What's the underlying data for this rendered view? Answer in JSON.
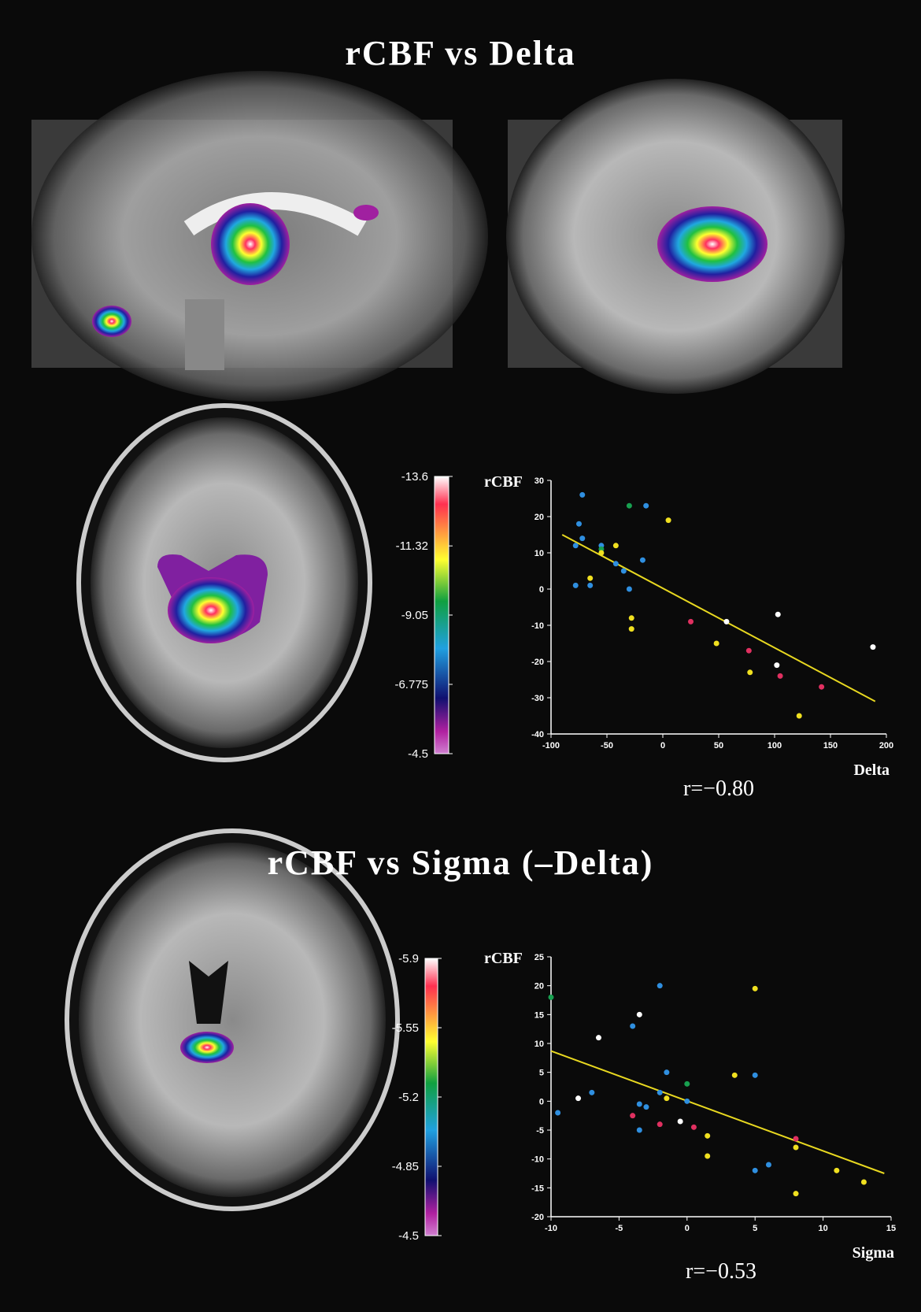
{
  "titles": [
    "rCBF vs Delta",
    "rCBF vs Sigma (–Delta)"
  ],
  "colorbars": [
    {
      "lim": [
        -13.6,
        -4.5
      ],
      "ticks": [
        -13.6,
        -11.32,
        -9.05,
        -6.775,
        -4.5
      ]
    },
    {
      "lim": [
        -5.9,
        -4.5
      ],
      "ticks": [
        -5.9,
        -5.55,
        -5.2,
        -4.85,
        -4.5
      ]
    }
  ],
  "chart_data": [
    {
      "type": "scatter",
      "ylabel": "rCBF",
      "xlabel": "Delta",
      "annotation": "r=−0.80",
      "xlim": [
        -100,
        200
      ],
      "ylim": [
        -40,
        30
      ],
      "xticks": [
        -100,
        -50,
        0,
        50,
        100,
        150,
        200
      ],
      "yticks": [
        -40,
        -30,
        -20,
        -10,
        0,
        10,
        20,
        30
      ],
      "series": [
        {
          "color": "#2f8fe0",
          "x": [
            -72,
            -75,
            -72,
            -78,
            -55,
            -42,
            -35,
            -18,
            -15,
            -78,
            -65,
            -30
          ],
          "y": [
            26,
            18,
            14,
            12,
            12,
            7,
            5,
            8,
            23,
            1,
            1,
            0
          ]
        },
        {
          "color": "#18a050",
          "x": [
            -30,
            -55
          ],
          "y": [
            23,
            11
          ]
        },
        {
          "color": "#f0e020",
          "x": [
            5,
            -65,
            -42,
            -55,
            -28,
            -28,
            48,
            78,
            122
          ],
          "y": [
            19,
            3,
            12,
            10,
            -8,
            -11,
            -15,
            -23,
            -35
          ]
        },
        {
          "color": "#e03060",
          "x": [
            25,
            77,
            105,
            142
          ],
          "y": [
            -9,
            -17,
            -24,
            -27
          ]
        },
        {
          "color": "#ffffff",
          "x": [
            57,
            103,
            102,
            188
          ],
          "y": [
            -9,
            -7,
            -21,
            -16
          ]
        }
      ],
      "fit": {
        "color": "#e8d820",
        "x": [
          -90,
          190
        ],
        "y": [
          15,
          -31
        ]
      }
    },
    {
      "type": "scatter",
      "ylabel": "rCBF",
      "xlabel": "Sigma",
      "annotation": "r=−0.53",
      "xlim": [
        -10,
        15
      ],
      "ylim": [
        -20,
        25
      ],
      "xticks": [
        -10,
        -5,
        0,
        5,
        10,
        15
      ],
      "yticks": [
        -20,
        -15,
        -10,
        -5,
        0,
        5,
        10,
        15,
        20,
        25
      ],
      "series": [
        {
          "color": "#18a050",
          "x": [
            -10,
            0
          ],
          "y": [
            18,
            3
          ]
        },
        {
          "color": "#2f8fe0",
          "x": [
            -2,
            -4,
            -1.5,
            -9.5,
            -7,
            -3.5,
            -3,
            -2,
            -3.5,
            0,
            5,
            6,
            5
          ],
          "y": [
            20,
            13,
            5,
            -2,
            1.5,
            -0.5,
            -1,
            1.5,
            -5,
            0,
            4.5,
            -11,
            -12
          ]
        },
        {
          "color": "#ffffff",
          "x": [
            -3.5,
            -6.5,
            -8,
            -0.5
          ],
          "y": [
            15,
            11,
            0.5,
            -3.5
          ]
        },
        {
          "color": "#f0e020",
          "x": [
            5,
            3.5,
            -1.5,
            1.5,
            1.5,
            8,
            11,
            13,
            8
          ],
          "y": [
            19.5,
            4.5,
            0.5,
            -6,
            -9.5,
            -8,
            -12,
            -14,
            -16
          ]
        },
        {
          "color": "#e03060",
          "x": [
            -4,
            -2,
            0.5,
            8
          ],
          "y": [
            -2.5,
            -4,
            -4.5,
            -6.5
          ]
        }
      ],
      "fit": {
        "color": "#e8d820",
        "x": [
          -10,
          14.5
        ],
        "y": [
          8.7,
          -12.5
        ]
      }
    }
  ]
}
